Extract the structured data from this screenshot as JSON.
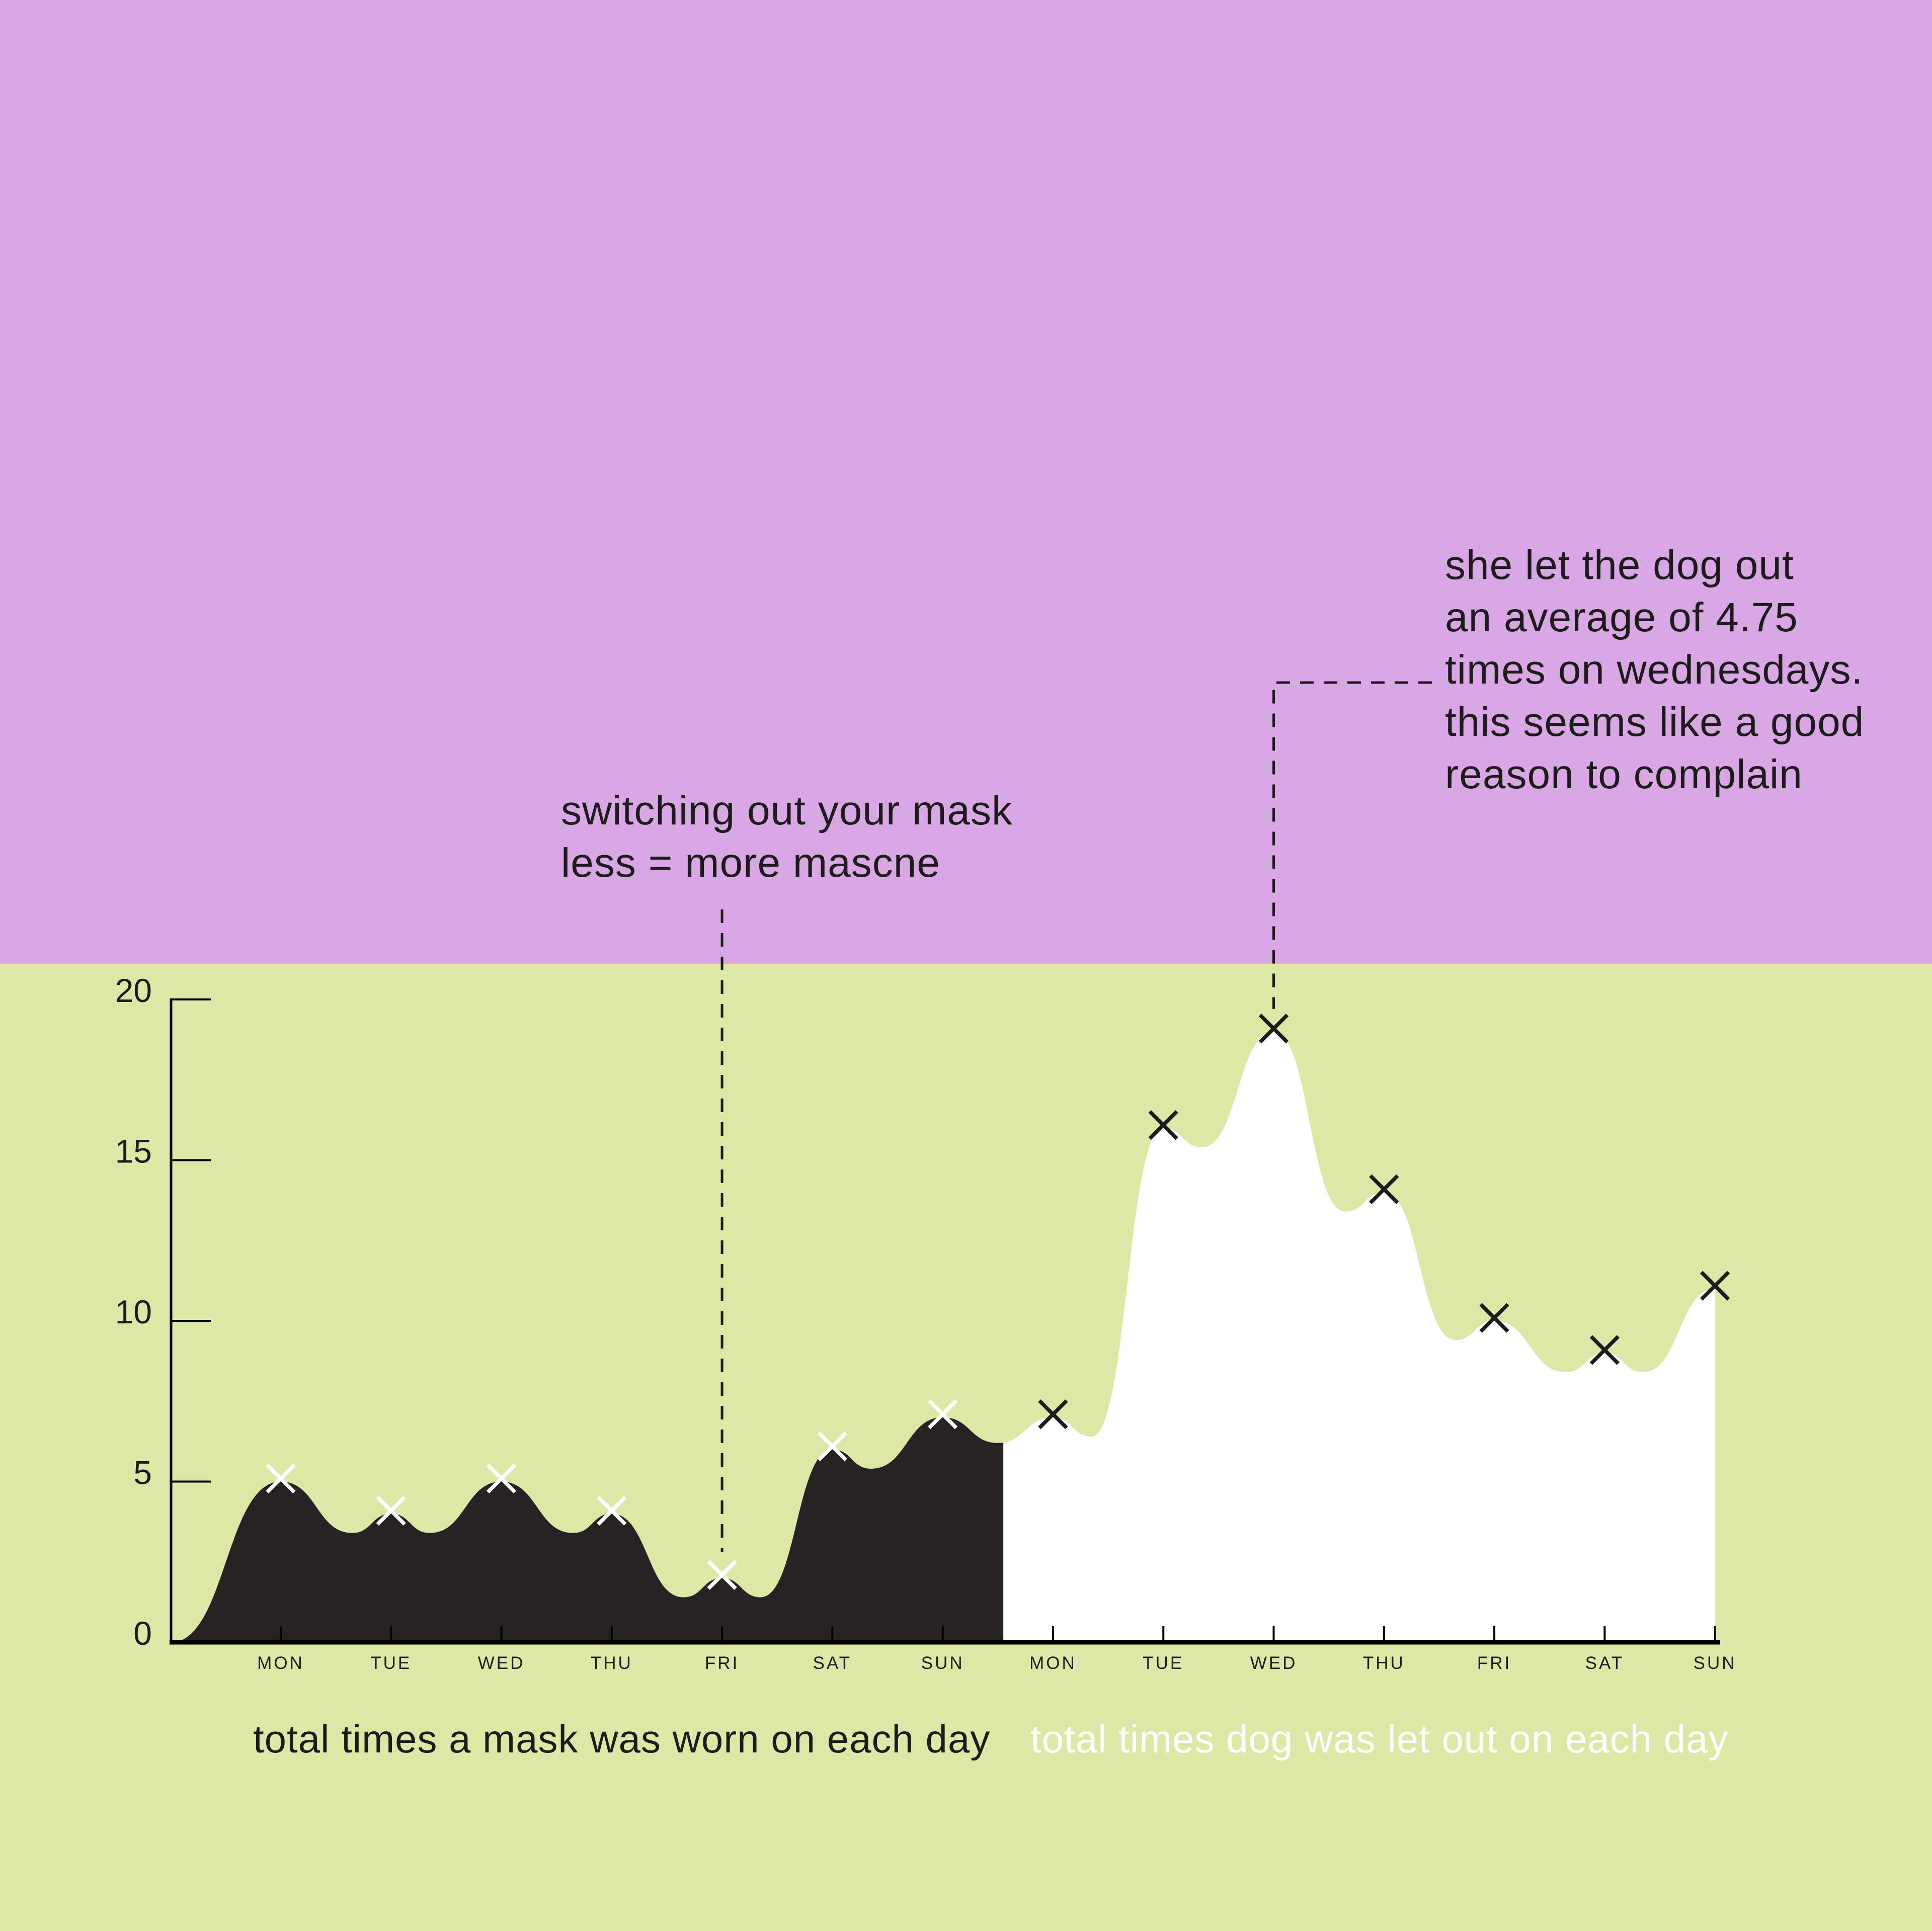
{
  "page": {
    "background_top": "#d8a7e4",
    "background_bottom": "#dde8a6",
    "text_color": "#1d1b1c"
  },
  "annotations": {
    "dog": {
      "text": "she let the dog out\nan average of 4.75\ntimes on wednesdays.\nthis seems like a good\nreason to complain"
    },
    "mask": {
      "text": "switching out your mask\nless = more mascne"
    }
  },
  "chart_data": {
    "type": "area",
    "title": "",
    "xlabel": "",
    "ylabel": "",
    "ylim": [
      0,
      20
    ],
    "yticks": [
      0,
      5,
      10,
      15,
      20
    ],
    "grid": false,
    "legend_position": "below-as-captions",
    "categories": [
      "MON",
      "TUE",
      "WED",
      "THU",
      "FRI",
      "SAT",
      "SUN",
      "MON",
      "TUE",
      "WED",
      "THU",
      "FRI",
      "SAT",
      "SUN"
    ],
    "series": [
      {
        "name": "total times a mask was worn on each day",
        "fill": "#272223",
        "marker": "x",
        "marker_color": "#ffffff",
        "label_color": "#1d1b1c",
        "values": [
          5,
          4,
          5,
          4,
          2,
          6,
          7
        ]
      },
      {
        "name": "total times dog was let out on each day",
        "fill": "#ffffff",
        "marker": "x",
        "marker_color": "#1d1b1c",
        "label_color": "#ffffff",
        "values": [
          7,
          16,
          19,
          14,
          10,
          9,
          11
        ]
      }
    ],
    "annotation_targets": {
      "mask_pointer_day_index": 4,
      "mask_pointer_value": 2,
      "dog_pointer_day_index": 9,
      "dog_pointer_value": 19
    },
    "axis_color": "#000000"
  }
}
